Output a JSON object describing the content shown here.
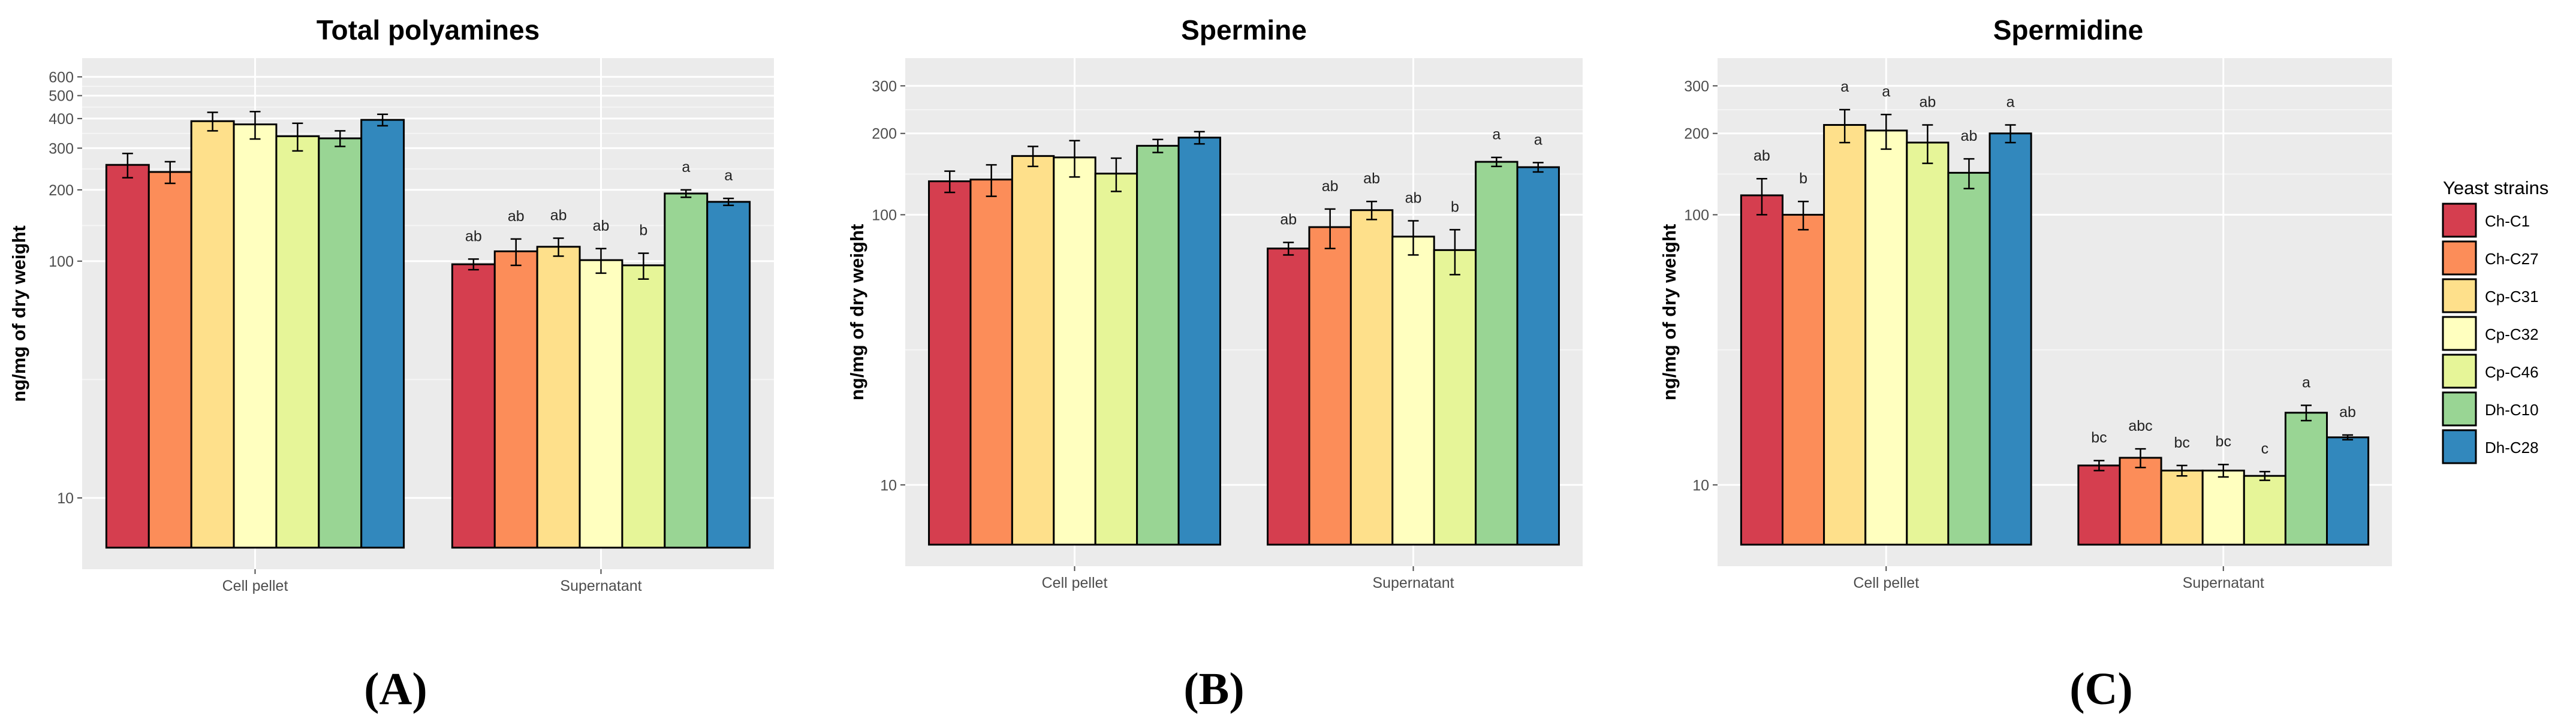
{
  "legend": {
    "title": "Yeast strains",
    "entries": [
      {
        "name": "Ch-C1",
        "color": "#d53e4f"
      },
      {
        "name": "Ch-C27",
        "color": "#fc8d59"
      },
      {
        "name": "Cp-C31",
        "color": "#fee08b"
      },
      {
        "name": "Cp-C32",
        "color": "#ffffbf"
      },
      {
        "name": "Cp-C46",
        "color": "#e6f598"
      },
      {
        "name": "Dh-C10",
        "color": "#99d594"
      },
      {
        "name": "Dh-C28",
        "color": "#3288bd"
      }
    ]
  },
  "chart_data": [
    {
      "type": "bar",
      "panel_label": "(A)",
      "title": "Total polyamines",
      "ylabel": "ng/mg of dry weight",
      "yscale": "log",
      "ylim": [
        5,
        720
      ],
      "yticks": [
        10,
        100,
        200,
        300,
        400,
        500,
        600
      ],
      "ytick_labels": [
        "10",
        "100",
        "200",
        "300",
        "400",
        "500",
        "600"
      ],
      "categories": [
        "Cell pellet",
        "Supernatant"
      ],
      "series": [
        {
          "name": "Ch-C1",
          "values": [
            255,
            97
          ],
          "errors": [
            30,
            5
          ],
          "letters": [
            "",
            "ab"
          ]
        },
        {
          "name": "Ch-C27",
          "values": [
            238,
            110
          ],
          "errors": [
            25,
            14
          ],
          "letters": [
            "",
            "ab"
          ]
        },
        {
          "name": "Cp-C31",
          "values": [
            390,
            115
          ],
          "errors": [
            35,
            10
          ],
          "letters": [
            "",
            "ab"
          ]
        },
        {
          "name": "Cp-C32",
          "values": [
            378,
            101
          ],
          "errors": [
            50,
            12
          ],
          "letters": [
            "",
            "ab"
          ]
        },
        {
          "name": "Cp-C46",
          "values": [
            337,
            96
          ],
          "errors": [
            45,
            12
          ],
          "letters": [
            "",
            "b"
          ]
        },
        {
          "name": "Dh-C10",
          "values": [
            330,
            193
          ],
          "errors": [
            25,
            7
          ],
          "letters": [
            "",
            "a"
          ]
        },
        {
          "name": "Dh-C28",
          "values": [
            395,
            178
          ],
          "errors": [
            22,
            6
          ],
          "letters": [
            "",
            "a"
          ]
        }
      ]
    },
    {
      "type": "bar",
      "panel_label": "(B)",
      "title": "Spermine",
      "ylabel": "ng/mg of dry weight",
      "yscale": "log",
      "ylim": [
        5,
        380
      ],
      "yticks": [
        10,
        100,
        200,
        300
      ],
      "ytick_labels": [
        "10",
        "100",
        "200",
        "300"
      ],
      "categories": [
        "Cell pellet",
        "Supernatant"
      ],
      "series": [
        {
          "name": "Ch-C1",
          "values": [
            133,
            75
          ],
          "errors": [
            12,
            4
          ],
          "letters": [
            "",
            "ab"
          ]
        },
        {
          "name": "Ch-C27",
          "values": [
            135,
            90
          ],
          "errors": [
            18,
            15
          ],
          "letters": [
            "",
            "ab"
          ]
        },
        {
          "name": "Cp-C31",
          "values": [
            165,
            104
          ],
          "errors": [
            14,
            8
          ],
          "letters": [
            "",
            "ab"
          ]
        },
        {
          "name": "Cp-C32",
          "values": [
            163,
            83
          ],
          "errors": [
            25,
            12
          ],
          "letters": [
            "",
            "ab"
          ]
        },
        {
          "name": "Cp-C46",
          "values": [
            142,
            74
          ],
          "errors": [
            20,
            14
          ],
          "letters": [
            "",
            "b"
          ]
        },
        {
          "name": "Dh-C10",
          "values": [
            180,
            157
          ],
          "errors": [
            10,
            6
          ],
          "letters": [
            "",
            "a"
          ]
        },
        {
          "name": "Dh-C28",
          "values": [
            193,
            150
          ],
          "errors": [
            10,
            6
          ],
          "letters": [
            "",
            "a"
          ]
        }
      ]
    },
    {
      "type": "bar",
      "panel_label": "(C)",
      "title": "Spermidine",
      "ylabel": "ng/mg of dry weight",
      "yscale": "log",
      "ylim": [
        5,
        380
      ],
      "yticks": [
        10,
        100,
        200,
        300
      ],
      "ytick_labels": [
        "10",
        "100",
        "200",
        "300"
      ],
      "categories": [
        "Cell pellet",
        "Supernatant"
      ],
      "series": [
        {
          "name": "Ch-C1",
          "values": [
            118,
            11.8
          ],
          "errors": [
            18,
            0.5
          ],
          "letters": [
            "ab",
            "bc"
          ]
        },
        {
          "name": "Ch-C27",
          "values": [
            100,
            12.6
          ],
          "errors": [
            12,
            1.0
          ],
          "letters": [
            "b",
            "abc"
          ]
        },
        {
          "name": "Cp-C31",
          "values": [
            215,
            11.3
          ],
          "errors": [
            30,
            0.5
          ],
          "letters": [
            "a",
            "bc"
          ]
        },
        {
          "name": "Cp-C32",
          "values": [
            205,
            11.3
          ],
          "errors": [
            30,
            0.6
          ],
          "letters": [
            "a",
            "bc"
          ]
        },
        {
          "name": "Cp-C46",
          "values": [
            185,
            10.8
          ],
          "errors": [
            30,
            0.4
          ],
          "letters": [
            "ab",
            "c"
          ]
        },
        {
          "name": "Dh-C10",
          "values": [
            143,
            18.5
          ],
          "errors": [
            18,
            1.2
          ],
          "letters": [
            "ab",
            "a"
          ]
        },
        {
          "name": "Dh-C28",
          "values": [
            200,
            15.0
          ],
          "errors": [
            15,
            0.3
          ],
          "letters": [
            "a",
            "ab"
          ]
        }
      ]
    }
  ]
}
